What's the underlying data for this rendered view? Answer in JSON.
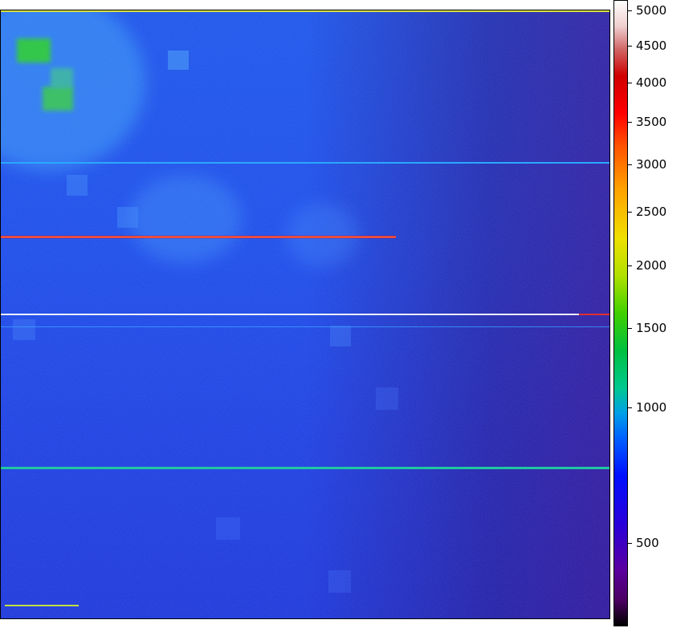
{
  "colorbar": {
    "ticks": [
      "5000",
      "4500",
      "4000",
      "3500",
      "3000",
      "2500",
      "2000",
      "1500",
      "1000",
      "500"
    ],
    "min": 300,
    "max": 5100,
    "colormap": "spectral-like (black-purple-blue-cyan-green-yellow-red-white)"
  },
  "image": {
    "dominant_color": "#1a4cf0",
    "right_edge_tint": "#3a10b0",
    "hot_region_color": "#20c040",
    "horizontal_streak_rows": 4
  }
}
